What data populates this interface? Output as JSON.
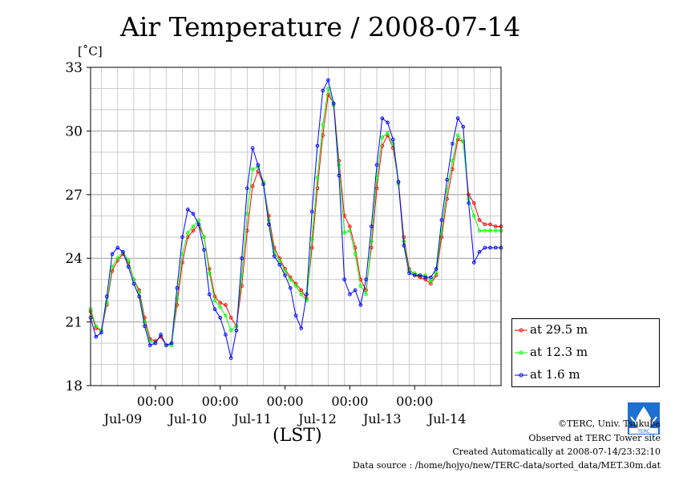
{
  "title": "Air Temperature / 2008-07-14",
  "unit_label": "[˚C]",
  "xlabel": "(LST)",
  "legend": [
    {
      "label": "at 29.5 m",
      "color": "#ff0000"
    },
    {
      "label": "at 12.3 m",
      "color": "#00ff00"
    },
    {
      "label": "at 1.6 m",
      "color": "#0000ff"
    }
  ],
  "footer": {
    "copyright": "©TERC, Univ. Tsukuba",
    "observed": "Observed at TERC Tower site",
    "created": "Created Automatically at 2008-07-14/23:32:10",
    "source": "Data source : /home/hojyo/new/TERC-data/sorted_data/MET.30m.dat"
  },
  "logo_icon": "terc-logo-icon",
  "chart_data": {
    "type": "line",
    "title": "Air Temperature / 2008-07-14",
    "ylabel": "[˚C]",
    "xlabel": "(LST)",
    "ylim": [
      18,
      33
    ],
    "yticks": [
      18,
      21,
      24,
      27,
      30,
      33
    ],
    "xlim_hours_from_jul09_00": [
      -10,
      142
    ],
    "day_ticks": [
      "00:00",
      "00:00",
      "00:00",
      "00:00",
      "00:00"
    ],
    "day_tick_hours": [
      14,
      38,
      62,
      86,
      110
    ],
    "date_labels": [
      "Jul-09",
      "Jul-10",
      "Jul-11",
      "Jul-12",
      "Jul-13",
      "Jul-14"
    ],
    "grid": true,
    "legend_position": "right-bottom",
    "series": [
      {
        "name": "at 29.5 m",
        "color": "#ff0000",
        "x": [
          0,
          2,
          4,
          6,
          8,
          10,
          12,
          14,
          16,
          18,
          20,
          22,
          24,
          26,
          28,
          30,
          32,
          34,
          36,
          38,
          40,
          42,
          44,
          46,
          48,
          50,
          52,
          54,
          56,
          58,
          60,
          62,
          64,
          66,
          68,
          70,
          72,
          74,
          76,
          78,
          80,
          82,
          84,
          86,
          88,
          90,
          92,
          94,
          96,
          98,
          100,
          102,
          104,
          106,
          108,
          110,
          112,
          114,
          116,
          118,
          120,
          122,
          124,
          126,
          128,
          130,
          132,
          134,
          136,
          138,
          140,
          142,
          144,
          146,
          148,
          150,
          152
        ],
        "y": [
          21.5,
          20.7,
          20.6,
          21.8,
          23.4,
          23.9,
          24.2,
          23.8,
          23.0,
          22.5,
          21.2,
          20.2,
          20.1,
          20.3,
          19.9,
          20.0,
          21.8,
          23.8,
          25.0,
          25.3,
          25.6,
          25.0,
          23.5,
          22.2,
          21.9,
          21.8,
          21.2,
          20.8,
          22.7,
          25.3,
          27.4,
          28.1,
          27.5,
          26.0,
          24.5,
          24.0,
          23.5,
          23.1,
          22.8,
          22.5,
          22.1,
          24.5,
          27.3,
          29.8,
          31.7,
          31.3,
          28.6,
          26.0,
          25.5,
          24.5,
          23.0,
          22.5,
          24.5,
          27.3,
          29.3,
          29.8,
          29.2,
          27.6,
          25.0,
          23.5,
          23.2,
          23.1,
          23.0,
          22.8,
          23.2,
          25.0,
          26.8,
          28.2,
          29.6,
          29.5,
          27.0,
          26.6,
          25.8,
          25.6,
          25.6,
          25.5,
          25.5
        ]
      },
      {
        "name": "at 12.3 m",
        "color": "#00ff00",
        "x": [
          0,
          2,
          4,
          6,
          8,
          10,
          12,
          14,
          16,
          18,
          20,
          22,
          24,
          26,
          28,
          30,
          32,
          34,
          36,
          38,
          40,
          42,
          44,
          46,
          48,
          50,
          52,
          54,
          56,
          58,
          60,
          62,
          64,
          66,
          68,
          70,
          72,
          74,
          76,
          78,
          80,
          82,
          84,
          86,
          88,
          90,
          92,
          94,
          96,
          98,
          100,
          102,
          104,
          106,
          108,
          110,
          112,
          114,
          116,
          118,
          120,
          122,
          124,
          126,
          128,
          130,
          132,
          134,
          136,
          138,
          140,
          142,
          144,
          146,
          148,
          150,
          152
        ],
        "y": [
          21.6,
          20.8,
          20.6,
          21.9,
          23.6,
          24.0,
          24.3,
          23.9,
          23.0,
          22.4,
          21.0,
          20.1,
          20.0,
          20.4,
          19.9,
          19.9,
          22.1,
          24.2,
          25.2,
          25.5,
          25.8,
          25.0,
          23.3,
          22.0,
          21.7,
          21.3,
          20.6,
          20.8,
          23.2,
          26.1,
          28.2,
          28.3,
          27.6,
          25.8,
          24.3,
          23.9,
          23.4,
          23.0,
          22.7,
          22.3,
          22.0,
          24.9,
          27.8,
          30.3,
          32.0,
          31.2,
          28.4,
          25.2,
          25.3,
          24.2,
          22.7,
          22.3,
          24.8,
          27.8,
          29.7,
          29.9,
          29.4,
          27.5,
          24.8,
          23.4,
          23.3,
          23.2,
          23.2,
          22.9,
          23.3,
          25.3,
          27.2,
          28.6,
          29.8,
          29.5,
          26.8,
          26.0,
          25.3,
          25.3,
          25.3,
          25.3,
          25.3
        ]
      },
      {
        "name": "at 1.6 m",
        "color": "#0000ff",
        "x": [
          0,
          2,
          4,
          6,
          8,
          10,
          12,
          14,
          16,
          18,
          20,
          22,
          24,
          26,
          28,
          30,
          32,
          34,
          36,
          38,
          40,
          42,
          44,
          46,
          48,
          50,
          52,
          54,
          56,
          58,
          60,
          62,
          64,
          66,
          68,
          70,
          72,
          74,
          76,
          78,
          80,
          82,
          84,
          86,
          88,
          90,
          92,
          94,
          96,
          98,
          100,
          102,
          104,
          106,
          108,
          110,
          112,
          114,
          116,
          118,
          120,
          122,
          124,
          126,
          128,
          130,
          132,
          134,
          136,
          138,
          140,
          142,
          144,
          146,
          148,
          150,
          152
        ],
        "y": [
          21.2,
          20.3,
          20.5,
          22.2,
          24.2,
          24.5,
          24.3,
          23.6,
          22.8,
          22.2,
          20.8,
          19.9,
          20.0,
          20.4,
          19.9,
          20.0,
          22.6,
          25.0,
          26.3,
          26.1,
          25.6,
          24.4,
          22.3,
          21.6,
          21.2,
          20.4,
          19.3,
          20.6,
          24.0,
          27.3,
          29.2,
          28.4,
          27.5,
          25.6,
          24.1,
          23.7,
          23.2,
          22.6,
          21.3,
          20.7,
          22.3,
          26.2,
          29.3,
          31.9,
          32.4,
          31.3,
          27.9,
          23.0,
          22.3,
          22.5,
          21.8,
          23.0,
          25.5,
          28.4,
          30.6,
          30.4,
          29.6,
          27.6,
          24.6,
          23.3,
          23.2,
          23.2,
          23.1,
          23.1,
          23.5,
          25.8,
          27.7,
          29.4,
          30.6,
          30.2,
          26.6,
          23.8,
          24.3,
          24.5,
          24.5,
          24.5,
          24.5
        ]
      }
    ]
  }
}
